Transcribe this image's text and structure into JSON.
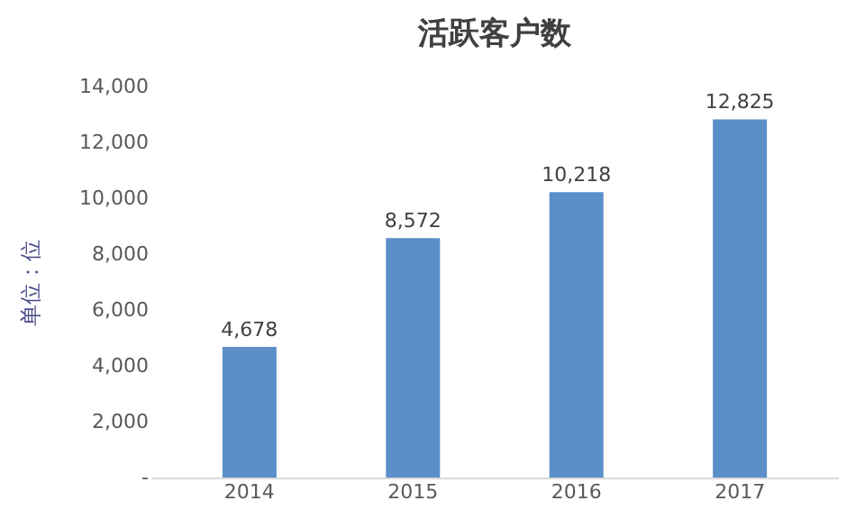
{
  "chart_data": {
    "type": "bar",
    "title": "活跃客户数",
    "ylabel": "单位：位",
    "categories": [
      "2014",
      "2015",
      "2016",
      "2017"
    ],
    "values": [
      4678,
      8572,
      10218,
      12825
    ],
    "value_labels": [
      "4,678",
      "8,572",
      "10,218",
      "12,825"
    ],
    "color": "#5b8fc9",
    "ylim": [
      0,
      14000
    ],
    "yticks": [
      {
        "value": 0,
        "label": "-"
      },
      {
        "value": 2000,
        "label": "2,000"
      },
      {
        "value": 4000,
        "label": "4,000"
      },
      {
        "value": 6000,
        "label": "6,000"
      },
      {
        "value": 8000,
        "label": "8,000"
      },
      {
        "value": 10000,
        "label": "10,000"
      },
      {
        "value": 12000,
        "label": "12,000"
      },
      {
        "value": 14000,
        "label": "14,000"
      }
    ],
    "grid": false
  }
}
